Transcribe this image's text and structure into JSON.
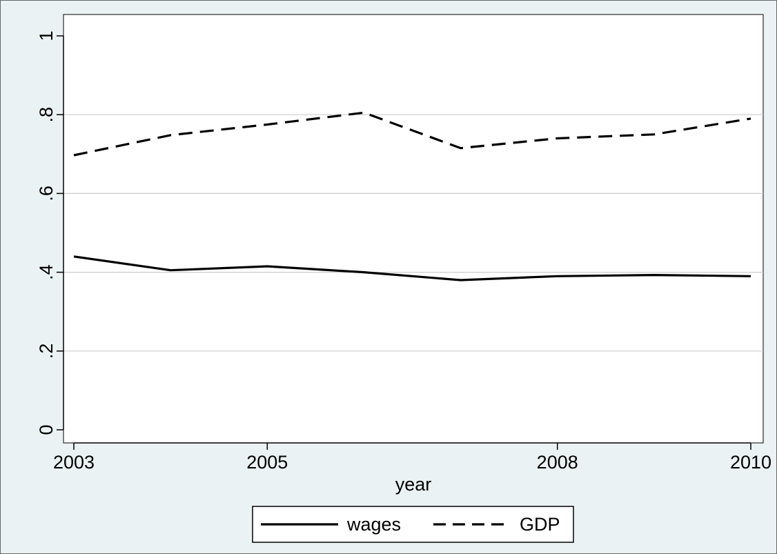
{
  "chart_data": {
    "type": "line",
    "title": "",
    "xlabel": "year",
    "ylabel": "",
    "x": [
      2003,
      2004,
      2005,
      2006,
      2007,
      2008,
      2009,
      2010
    ],
    "x_ticks": [
      2003,
      2005,
      2008,
      2010
    ],
    "x_tick_labels": [
      "2003",
      "2005",
      "2008",
      "2010"
    ],
    "xlim": [
      2003,
      2010
    ],
    "y_ticks": [
      0,
      0.2,
      0.4,
      0.6,
      0.8,
      1
    ],
    "y_tick_labels": [
      "0",
      ".2",
      ".4",
      ".6",
      ".8",
      "1"
    ],
    "ylim": [
      0,
      1
    ],
    "grid": true,
    "legend_position": "bottom",
    "series": [
      {
        "name": "wages",
        "line_style": "solid",
        "color": "#000000",
        "values": [
          0.44,
          0.405,
          0.415,
          0.4,
          0.38,
          0.39,
          0.393,
          0.39
        ]
      },
      {
        "name": "GDP",
        "line_style": "dashed",
        "color": "#000000",
        "values": [
          0.697,
          0.748,
          0.775,
          0.805,
          0.715,
          0.74,
          0.75,
          0.79
        ]
      }
    ]
  },
  "colors": {
    "outer_background": "#eaf2f3",
    "plot_background": "#ffffff",
    "grid": "#cccccc",
    "line": "#000000"
  }
}
